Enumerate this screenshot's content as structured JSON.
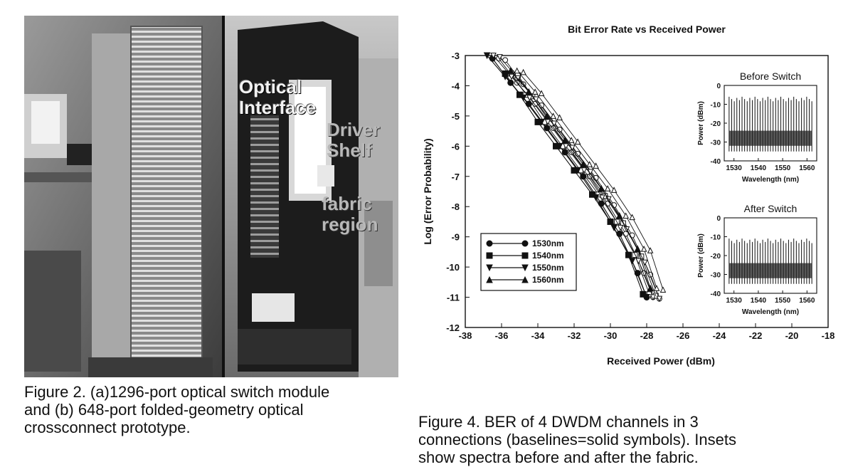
{
  "figure2": {
    "photo_labels": {
      "optical": "Optical\nInterface",
      "driver": "Driver\nShelf",
      "fabric": "fabric\nregion"
    },
    "caption": "Figure 2.  (a)1296-port optical switch module\nand (b) 648-port folded-geometry  optical\ncrossconnect prototype."
  },
  "figure4": {
    "caption": "Figure 4.  BER of 4 DWDM channels in 3\nconnections (baselines=solid symbols).  Insets\nshow spectra before and after the fabric."
  },
  "chart_data": [
    {
      "type": "scatter",
      "title": "Bit Error Rate vs Received Power",
      "xlabel": "Received Power (dBm)",
      "ylabel": "Log (Error Probability)",
      "xlim": [
        -38,
        -18
      ],
      "ylim": [
        -12,
        -3
      ],
      "xticks": [
        -38,
        -36,
        -34,
        -32,
        -30,
        -28,
        -26,
        -24,
        -22,
        -20,
        -18
      ],
      "yticks": [
        -3,
        -4,
        -5,
        -6,
        -7,
        -8,
        -9,
        -10,
        -11,
        -12
      ],
      "legend_placement": "bottom-left",
      "series": [
        {
          "name": "1530nm",
          "marker": "circle",
          "filled": true,
          "x": [
            -36.5,
            -35.5,
            -34.5,
            -33.5,
            -32.5,
            -31.5,
            -30.5,
            -29.5,
            -28.5,
            -28.0
          ],
          "y": [
            -3.1,
            -3.9,
            -4.6,
            -5.4,
            -6.2,
            -7.0,
            -7.9,
            -8.9,
            -10.2,
            -11.0
          ]
        },
        {
          "name": "1540nm",
          "marker": "square",
          "filled": true,
          "x": [
            -35.8,
            -35.0,
            -34.0,
            -33.0,
            -32.0,
            -31.0,
            -30.0,
            -29.0,
            -28.2
          ],
          "y": [
            -3.6,
            -4.3,
            -5.2,
            -6.0,
            -6.8,
            -7.6,
            -8.5,
            -9.6,
            -10.9
          ]
        },
        {
          "name": "1550nm",
          "marker": "triangle-down",
          "filled": true,
          "x": [
            -36.8,
            -35.8,
            -34.8,
            -33.8,
            -32.8,
            -31.8,
            -30.8,
            -29.8,
            -28.8,
            -28.0
          ],
          "y": [
            -3.0,
            -3.7,
            -4.4,
            -5.2,
            -6.0,
            -6.8,
            -7.7,
            -8.7,
            -9.8,
            -11.0
          ]
        },
        {
          "name": "1560nm",
          "marker": "triangle-up",
          "filled": true,
          "x": [
            -35.5,
            -34.5,
            -33.5,
            -32.5,
            -31.5,
            -30.5,
            -29.5,
            -28.5,
            -27.8
          ],
          "y": [
            -3.5,
            -4.2,
            -5.0,
            -5.8,
            -6.6,
            -7.4,
            -8.3,
            -9.4,
            -10.7
          ]
        }
      ],
      "legend": [
        "1530nm",
        "1540nm",
        "1550nm",
        "1560nm"
      ]
    },
    {
      "type": "line",
      "title": "Before Switch",
      "xlabel": "Wavelength (nm)",
      "ylabel": "Power (dBm)",
      "xlim": [
        1526,
        1564
      ],
      "ylim": [
        -40,
        0
      ],
      "xticks": [
        1530,
        1540,
        1550,
        1560
      ],
      "yticks": [
        0,
        -10,
        -20,
        -30,
        -40
      ],
      "channel_count": 33,
      "channel_start_nm": 1528,
      "channel_end_nm": 1562,
      "peak_dbm": -6,
      "floor_dbm": -35
    },
    {
      "type": "line",
      "title": "After Switch",
      "xlabel": "Wavelength (nm)",
      "ylabel": "Power (dBm)",
      "xlim": [
        1526,
        1564
      ],
      "ylim": [
        -40,
        0
      ],
      "xticks": [
        1530,
        1540,
        1550,
        1560
      ],
      "yticks": [
        0,
        -10,
        -20,
        -30,
        -40
      ],
      "channel_count": 33,
      "channel_start_nm": 1528,
      "channel_end_nm": 1562,
      "peak_dbm": -11,
      "floor_dbm": -35
    }
  ]
}
